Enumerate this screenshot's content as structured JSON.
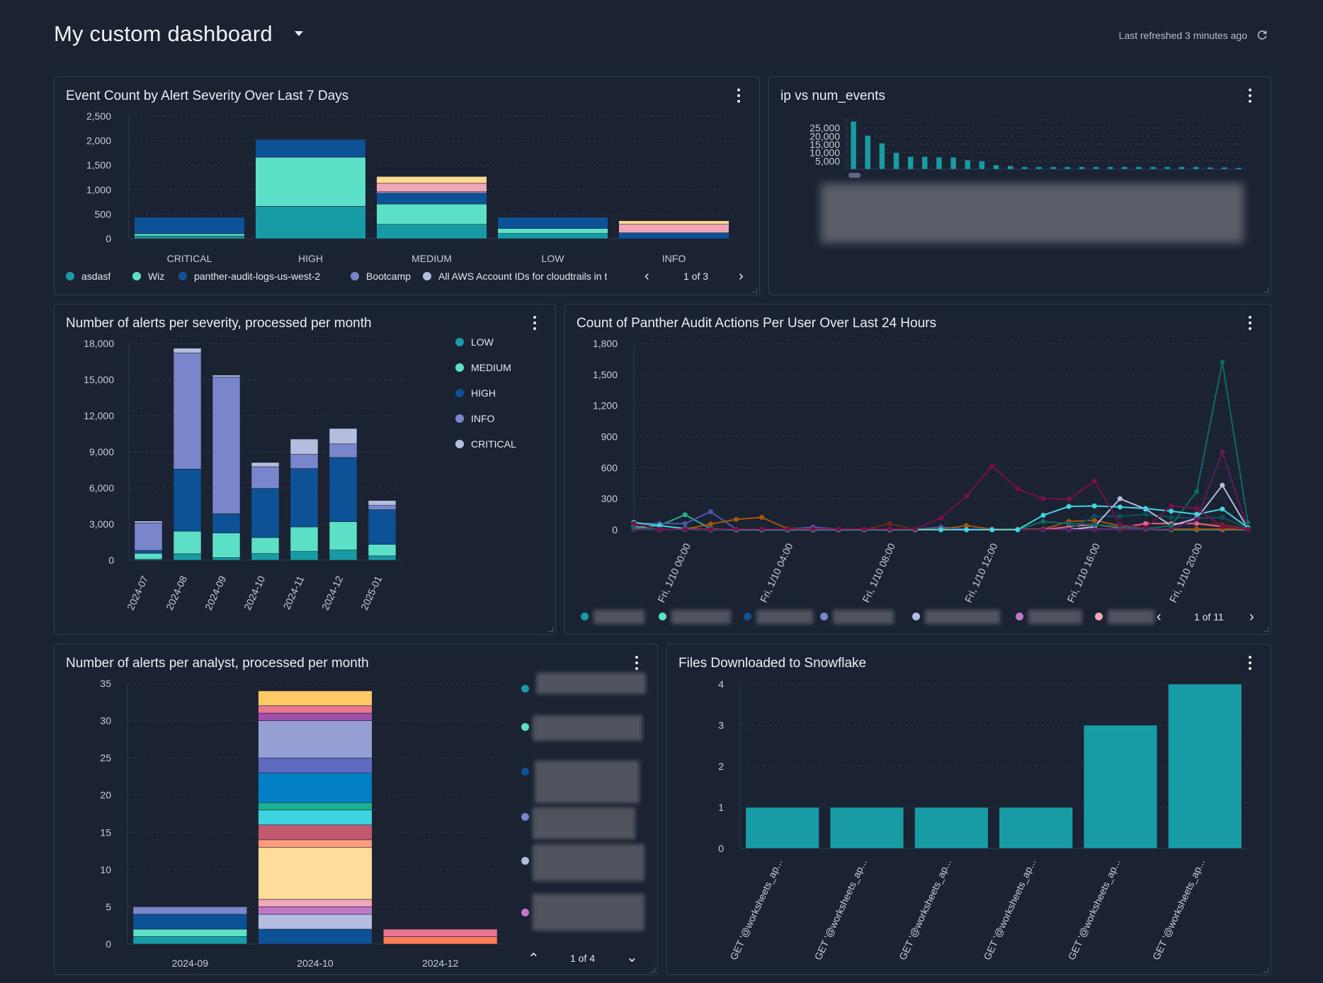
{
  "header": {
    "title": "My custom dashboard",
    "last_refreshed": "Last refreshed 3 minutes ago"
  },
  "chart_data": [
    {
      "title": "Event Count by Alert Severity Over Last 7 Days",
      "type": "bar",
      "stacked": true,
      "categories": [
        "CRITICAL",
        "HIGH",
        "MEDIUM",
        "LOW",
        "INFO"
      ],
      "ylim": [
        0,
        2500
      ],
      "yticks": [
        "0",
        "500",
        "1,000",
        "1,500",
        "2,000",
        "2,500"
      ],
      "ytick_values": [
        0,
        500,
        1000,
        1500,
        2000,
        2500
      ],
      "grid": true,
      "legend": "bottom",
      "legend_page": "1 of 3",
      "series": [
        {
          "name": "asdasf",
          "color": "#179ca6",
          "values": [
            53,
            659,
            293,
            106,
            0
          ]
        },
        {
          "name": "Wiz",
          "color": "#5ce1c8",
          "values": [
            48,
            1004,
            414,
            101,
            0
          ]
        },
        {
          "name": "panther-audit-logs-us-west-2",
          "color": "#0d5296",
          "values": [
            336,
            356,
            216,
            230,
            120
          ]
        },
        {
          "name": "Bootcamp",
          "color": "#7986cb",
          "values": [
            0,
            0,
            34,
            0,
            0
          ]
        },
        {
          "name": "All AWS Account IDs for cloudtrails in t",
          "color": "#b4bce0",
          "values": [
            0,
            10,
            0,
            0,
            0
          ]
        },
        {
          "color": "#f1a7b8",
          "values": [
            0,
            0,
            173,
            0,
            173
          ]
        },
        {
          "color": "#ffd98f",
          "values": [
            0,
            0,
            139,
            0,
            72
          ]
        }
      ]
    },
    {
      "title": "ip vs num_events",
      "type": "bar",
      "ylim": [
        0,
        30000
      ],
      "yticks": [
        "5,000",
        "10,000",
        "15,000",
        "20,000",
        "25,000"
      ],
      "ytick_values": [
        5000,
        10000,
        15000,
        20000,
        25000
      ],
      "grid": true,
      "color": "#179ca6",
      "values": [
        29000,
        20500,
        15800,
        10100,
        7700,
        7700,
        7300,
        7300,
        5600,
        5000,
        2600,
        2100,
        1500,
        1500,
        1500,
        1500,
        1500,
        1500,
        1500,
        1500,
        1500,
        1500,
        1500,
        1500,
        1500,
        1200,
        1200,
        1000
      ]
    },
    {
      "title": "Number of alerts per severity, processed per month",
      "type": "bar",
      "stacked": true,
      "categories": [
        "2024-07",
        "2024-08",
        "2024-09",
        "2024-10",
        "2024-11",
        "2024-12",
        "2025-01"
      ],
      "ylim": [
        0,
        18000
      ],
      "yticks": [
        "0",
        "3,000",
        "6,000",
        "9,000",
        "12,000",
        "15,000",
        "18,000"
      ],
      "ytick_values": [
        0,
        3000,
        6000,
        9000,
        12000,
        15000,
        18000
      ],
      "grid": true,
      "legend": "right",
      "series": [
        {
          "name": "LOW",
          "color": "#179ca6",
          "values": [
            80,
            530,
            215,
            550,
            725,
            845,
            355
          ]
        },
        {
          "name": "MEDIUM",
          "color": "#5ce1c8",
          "values": [
            490,
            1880,
            2040,
            1330,
            2040,
            2355,
            960
          ]
        },
        {
          "name": "HIGH",
          "color": "#0d5296",
          "values": [
            250,
            5160,
            1610,
            4080,
            4845,
            5330,
            2880
          ]
        },
        {
          "name": "INFO",
          "color": "#7986cb",
          "values": [
            2280,
            9650,
            11355,
            1800,
            1180,
            1130,
            355
          ]
        },
        {
          "name": "CRITICAL",
          "color": "#b4bce0",
          "values": [
            150,
            390,
            155,
            355,
            1270,
            1280,
            410
          ]
        }
      ]
    },
    {
      "title": "Count of Panther Audit Actions Per User Over Last 24 Hours",
      "type": "line",
      "x": [
        "1/9 22:00",
        "1/9 23:00",
        "1/10 00:00",
        "1/10 01:00",
        "1/10 02:00",
        "1/10 03:00",
        "1/10 04:00",
        "1/10 05:00",
        "1/10 06:00",
        "1/10 07:00",
        "1/10 08:00",
        "1/10 09:00",
        "1/10 10:00",
        "1/10 11:00",
        "1/10 12:00",
        "1/10 13:00",
        "1/10 14:00",
        "1/10 15:00",
        "1/10 16:00",
        "1/10 17:00",
        "1/10 18:00",
        "1/10 19:00",
        "1/10 20:00",
        "1/10 21:00",
        "1/10 22:00"
      ],
      "xticks": [
        {
          "label": "Fri, 1/10 00:00",
          "x": "1/10 00:00"
        },
        {
          "label": "Fri, 1/10 04:00",
          "x": "1/10 04:00"
        },
        {
          "label": "Fri, 1/10 08:00",
          "x": "1/10 08:00"
        },
        {
          "label": "Fri, 1/10 12:00",
          "x": "1/10 12:00"
        },
        {
          "label": "Fri, 1/10 16:00",
          "x": "1/10 16:00"
        },
        {
          "label": "Fri, 1/10 20:00",
          "x": "1/10 20:00"
        }
      ],
      "ylim": [
        0,
        1800
      ],
      "yticks": [
        "0",
        "300",
        "600",
        "900",
        "1,200",
        "1,500",
        "1,800"
      ],
      "ytick_values": [
        0,
        300,
        600,
        900,
        1200,
        1500,
        1800
      ],
      "grid": true,
      "legend": "bottom",
      "legend_page": "1 of 11",
      "legend_colors": [
        "#179ca6",
        "#5ce1c8",
        "#0d5296",
        "#7986cb",
        "#b4bce0",
        "#c077c8",
        "#f1a7b8"
      ],
      "series": [
        {
          "color": "#20b38b",
          "values": [
            20,
            40,
            145,
            10,
            0,
            0,
            0,
            0,
            0,
            0,
            0,
            0,
            0,
            0,
            0,
            0,
            0,
            0,
            0,
            0,
            0,
            0,
            0,
            0,
            0
          ]
        },
        {
          "color": "#4c56aa",
          "values": [
            60,
            60,
            60,
            175,
            5,
            5,
            5,
            25,
            5,
            5,
            5,
            5,
            25,
            5,
            5,
            5,
            5,
            5,
            5,
            5,
            5,
            5,
            5,
            5,
            5
          ]
        },
        {
          "color": "#a4540b",
          "values": [
            0,
            0,
            5,
            55,
            100,
            120,
            10,
            5,
            5,
            5,
            5,
            5,
            5,
            40,
            5,
            5,
            5,
            80,
            90,
            40,
            5,
            5,
            5,
            5,
            5
          ]
        },
        {
          "color": "#6a2a1b",
          "values": [
            0,
            0,
            0,
            0,
            0,
            0,
            0,
            0,
            0,
            0,
            60,
            0,
            0,
            0,
            0,
            0,
            0,
            0,
            0,
            0,
            60,
            60,
            60,
            50,
            10
          ]
        },
        {
          "color": "#e06585",
          "values": [
            5,
            0,
            0,
            0,
            0,
            0,
            0,
            0,
            0,
            0,
            0,
            0,
            0,
            0,
            0,
            0,
            0,
            30,
            50,
            20,
            60,
            60,
            60,
            30,
            5
          ]
        },
        {
          "color": "#0c4f5e",
          "values": [
            0,
            0,
            0,
            0,
            0,
            0,
            0,
            0,
            0,
            0,
            0,
            0,
            0,
            0,
            0,
            0,
            0,
            0,
            130,
            130,
            150,
            120,
            110,
            120,
            10
          ]
        },
        {
          "color": "#b4bce0",
          "values": [
            30,
            0,
            0,
            0,
            0,
            0,
            0,
            0,
            0,
            0,
            0,
            0,
            0,
            0,
            0,
            0,
            0,
            0,
            30,
            300,
            200,
            40,
            110,
            430,
            10
          ]
        },
        {
          "color": "#5b1d5f",
          "values": [
            0,
            0,
            0,
            0,
            0,
            0,
            0,
            0,
            0,
            0,
            0,
            0,
            0,
            0,
            0,
            0,
            0,
            0,
            0,
            0,
            0,
            10,
            100,
            750,
            0
          ]
        },
        {
          "color": "#0d6b5e",
          "values": [
            20,
            5,
            0,
            0,
            0,
            0,
            0,
            0,
            0,
            0,
            0,
            0,
            0,
            0,
            0,
            0,
            80,
            60,
            50,
            30,
            10,
            40,
            370,
            1620,
            70
          ]
        },
        {
          "color": "#3fd6e2",
          "values": [
            70,
            40,
            10,
            5,
            0,
            0,
            0,
            0,
            0,
            0,
            0,
            0,
            0,
            0,
            0,
            0,
            140,
            225,
            230,
            220,
            205,
            180,
            150,
            200,
            20
          ]
        },
        {
          "color": "#7b0d4b",
          "values": [
            60,
            5,
            5,
            5,
            5,
            5,
            5,
            5,
            5,
            5,
            5,
            5,
            115,
            325,
            615,
            395,
            300,
            295,
            470,
            50,
            20,
            230,
            205,
            30,
            5
          ]
        }
      ]
    },
    {
      "title": "Number of alerts per analyst, processed per month",
      "type": "bar",
      "stacked": true,
      "categories": [
        "2024-09",
        "2024-10",
        "2024-12"
      ],
      "ylim": [
        0,
        35
      ],
      "yticks": [
        "0",
        "5",
        "10",
        "15",
        "20",
        "25",
        "30",
        "35"
      ],
      "ytick_values": [
        0,
        5,
        10,
        15,
        20,
        25,
        30,
        35
      ],
      "grid": true,
      "legend": "right",
      "legend_page": "1 of 4",
      "legend_colors": [
        "#179ca6",
        "#5ce1c8",
        "#0d5296",
        "#7986cb",
        "#b4bce0",
        "#c077c8"
      ],
      "stacks": [
        [
          {
            "value": 1,
            "color": "#179ca6"
          },
          {
            "value": 1,
            "color": "#5ce1c8"
          },
          {
            "value": 2,
            "color": "#0d5296"
          },
          {
            "value": 1,
            "color": "#7986cb"
          }
        ],
        [
          {
            "value": 2,
            "color": "#0d5296"
          },
          {
            "value": 2,
            "color": "#b4bce0"
          },
          {
            "value": 1,
            "color": "#c077c8"
          },
          {
            "value": 1,
            "color": "#f1a7b8"
          },
          {
            "value": 7,
            "color": "#ffdc99"
          },
          {
            "value": 1,
            "color": "#ff9a7a"
          },
          {
            "value": 2,
            "color": "#c45870"
          },
          {
            "value": 2,
            "color": "#3fd2e0"
          },
          {
            "value": 1,
            "color": "#18b394"
          },
          {
            "value": 4,
            "color": "#0380c5"
          },
          {
            "value": 2,
            "color": "#5f6ac0"
          },
          {
            "value": 5,
            "color": "#97a0d5"
          },
          {
            "value": 1,
            "color": "#a050a8"
          },
          {
            "value": 1,
            "color": "#e87592"
          },
          {
            "value": 2,
            "color": "#ffc966"
          }
        ],
        [
          {
            "value": 1,
            "color": "#ff7b5a"
          },
          {
            "value": 1,
            "color": "#e87592"
          }
        ]
      ]
    },
    {
      "title": "Files Downloaded to Snowflake",
      "type": "bar",
      "categories": [
        "GET '@worksheets_ap...",
        "GET '@worksheets_ap...",
        "GET '@worksheets_ap...",
        "GET '@worksheets_ap...",
        "GET '@worksheets_ap...",
        "GET '@worksheets_ap..."
      ],
      "values": [
        1,
        1,
        1,
        1,
        3,
        4
      ],
      "color": "#179ca6",
      "ylim": [
        0,
        4
      ],
      "yticks": [
        "0",
        "1",
        "2",
        "3",
        "4"
      ],
      "ytick_values": [
        0,
        1,
        2,
        3,
        4
      ],
      "grid": true
    }
  ]
}
